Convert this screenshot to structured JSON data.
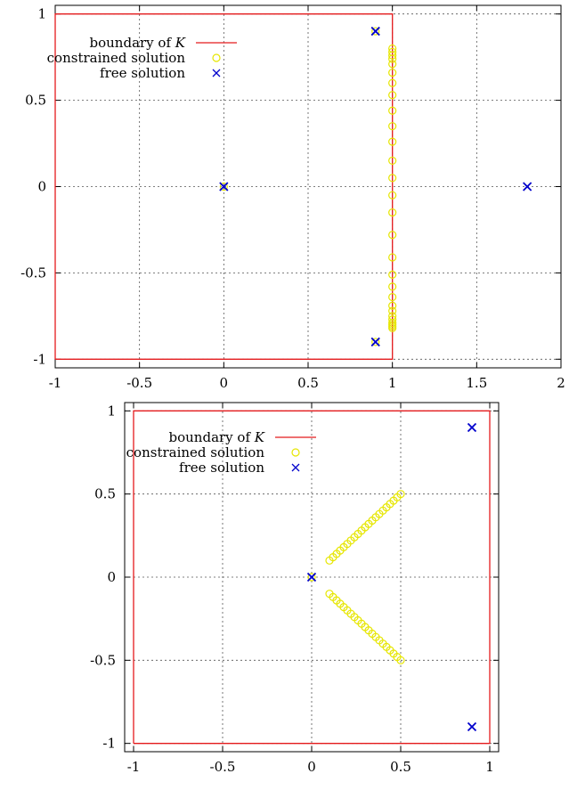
{
  "chart_data": [
    {
      "type": "scatter",
      "xlim": [
        -1,
        2
      ],
      "ylim": [
        -1.05,
        1.05
      ],
      "xticks": [
        -1,
        -0.5,
        0,
        0.5,
        1,
        1.5,
        2
      ],
      "yticks": [
        -1,
        -0.5,
        0,
        0.5,
        1
      ],
      "xtick_labels": [
        "-1",
        "-0.5",
        "0",
        "0.5",
        "1",
        "1.5",
        "2"
      ],
      "ytick_labels": [
        "-1",
        "-0.5",
        "0",
        "0.5",
        "1"
      ],
      "grid": true,
      "legend_position": "top-left",
      "boundary": {
        "name_prefix": "boundary of ",
        "name_symbol": "K",
        "color": "#e41a1c",
        "x": [
          -1,
          1,
          1,
          -1,
          -1
        ],
        "y": [
          -1,
          -1,
          1,
          1,
          -1
        ]
      },
      "series": [
        {
          "name": "constrained solution",
          "marker": "circle",
          "color": "#e6e600",
          "x": [
            0,
            0.9,
            0.9,
            1,
            1,
            1,
            1,
            1,
            1,
            1,
            1,
            1,
            1,
            1,
            1,
            1,
            1,
            1,
            1,
            1,
            1,
            1,
            1,
            1,
            1,
            1,
            1,
            1,
            1,
            1,
            1
          ],
          "y": [
            0,
            0.9,
            -0.9,
            0.8,
            0.78,
            0.76,
            0.74,
            0.71,
            0.66,
            0.6,
            0.53,
            0.44,
            0.35,
            0.26,
            0.15,
            0.05,
            -0.05,
            -0.15,
            -0.28,
            -0.41,
            -0.51,
            -0.58,
            -0.64,
            -0.69,
            -0.72,
            -0.75,
            -0.77,
            -0.79,
            -0.8,
            -0.81,
            -0.82
          ]
        },
        {
          "name": "free solution",
          "marker": "x",
          "color": "#0000cc",
          "x": [
            0,
            0.9,
            0.9,
            1.8
          ],
          "y": [
            0,
            0.9,
            -0.9,
            0
          ]
        }
      ]
    },
    {
      "type": "scatter",
      "xlim": [
        -1.05,
        1.05
      ],
      "ylim": [
        -1.05,
        1.05
      ],
      "xticks": [
        -1,
        -0.5,
        0,
        0.5,
        1
      ],
      "yticks": [
        -1,
        -0.5,
        0,
        0.5,
        1
      ],
      "xtick_labels": [
        "-1",
        "-0.5",
        "0",
        "0.5",
        "1"
      ],
      "ytick_labels": [
        "-1",
        "-0.5",
        "0",
        "0.5",
        "1"
      ],
      "grid": true,
      "legend_position": "top-left",
      "boundary": {
        "name_prefix": "boundary of ",
        "name_symbol": "K",
        "color": "#e41a1c",
        "x": [
          -1,
          1,
          1,
          -1,
          -1
        ],
        "y": [
          -1,
          -1,
          1,
          1,
          -1
        ]
      },
      "series": [
        {
          "name": "constrained solution",
          "marker": "circle",
          "color": "#e6e600",
          "x": [
            0,
            0.1,
            0.12,
            0.14,
            0.16,
            0.18,
            0.2,
            0.22,
            0.24,
            0.26,
            0.28,
            0.3,
            0.32,
            0.34,
            0.36,
            0.38,
            0.4,
            0.42,
            0.44,
            0.46,
            0.48,
            0.5,
            0.1,
            0.12,
            0.14,
            0.16,
            0.18,
            0.2,
            0.22,
            0.24,
            0.26,
            0.28,
            0.3,
            0.32,
            0.34,
            0.36,
            0.38,
            0.4,
            0.42,
            0.44,
            0.46,
            0.48,
            0.5
          ],
          "y": [
            0,
            0.1,
            0.12,
            0.14,
            0.16,
            0.18,
            0.2,
            0.22,
            0.24,
            0.26,
            0.28,
            0.3,
            0.32,
            0.34,
            0.36,
            0.38,
            0.4,
            0.42,
            0.44,
            0.46,
            0.48,
            0.5,
            -0.1,
            -0.12,
            -0.14,
            -0.16,
            -0.18,
            -0.2,
            -0.22,
            -0.24,
            -0.26,
            -0.28,
            -0.3,
            -0.32,
            -0.34,
            -0.36,
            -0.38,
            -0.4,
            -0.42,
            -0.44,
            -0.46,
            -0.48,
            -0.5
          ]
        },
        {
          "name": "free solution",
          "marker": "x",
          "color": "#0000cc",
          "x": [
            0,
            0.9,
            0.9
          ],
          "y": [
            0,
            0.9,
            -0.9
          ]
        }
      ]
    }
  ]
}
